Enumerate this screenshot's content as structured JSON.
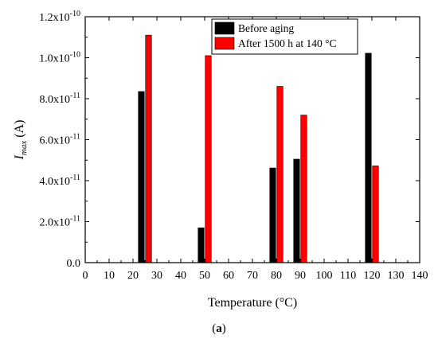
{
  "chart_data": {
    "type": "bar",
    "xlabel": "Temperature (°C)",
    "ylabel_main": "I",
    "ylabel_sub": "max",
    "ylabel_unit": "(A)",
    "xlim": [
      0,
      140
    ],
    "ylim": [
      0,
      1.2e-10
    ],
    "x_ticks": [
      0,
      10,
      20,
      30,
      40,
      50,
      60,
      70,
      80,
      90,
      100,
      110,
      120,
      130,
      140
    ],
    "y_ticks": [
      {
        "value": 0,
        "mant": "0.0",
        "exp": ""
      },
      {
        "value": 2e-11,
        "mant": "2.0x10",
        "exp": "-11"
      },
      {
        "value": 4e-11,
        "mant": "4.0x10",
        "exp": "-11"
      },
      {
        "value": 6e-11,
        "mant": "6.0x10",
        "exp": "-11"
      },
      {
        "value": 8e-11,
        "mant": "8.0x10",
        "exp": "-11"
      },
      {
        "value": 1e-10,
        "mant": "1.0x10",
        "exp": "-10"
      },
      {
        "value": 1.2e-10,
        "mant": "1.2x10",
        "exp": "-10"
      }
    ],
    "series": [
      {
        "name": "Before aging",
        "color": "#000000",
        "x": [
          23.5,
          48.5,
          78.5,
          88.5,
          118.5
        ],
        "values": [
          8.35e-11,
          1.7e-11,
          4.62e-11,
          5.05e-11,
          1.022e-10
        ]
      },
      {
        "name": "After 1500 h at 140 °C",
        "color": "#ff0000",
        "x": [
          26.5,
          51.5,
          81.5,
          91.5,
          121.5
        ],
        "values": [
          1.11e-10,
          1.01e-10,
          8.6e-11,
          7.2e-11,
          4.72e-11
        ]
      }
    ],
    "legend_position": "top-right",
    "grid": false
  },
  "caption": {
    "open": "(",
    "label": "a",
    "close": ")"
  }
}
